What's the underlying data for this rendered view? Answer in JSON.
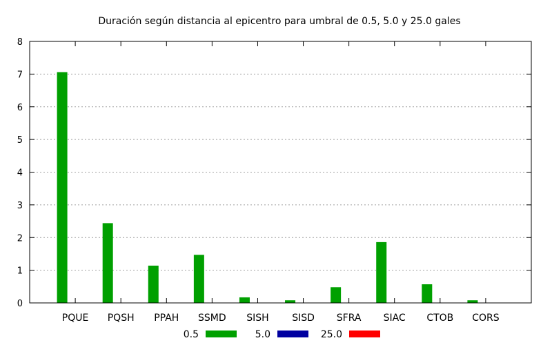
{
  "chart_data": {
    "type": "bar",
    "title": "Duración según distancia al epicentro para umbral de 0.5, 5.0 y 25.0 gales",
    "xlabel": "",
    "ylabel": "",
    "ylim": [
      0,
      8
    ],
    "yticks": [
      0,
      1,
      2,
      3,
      4,
      5,
      6,
      7,
      8
    ],
    "grid": true,
    "legend_position": "bottom",
    "categories": [
      "PQUE",
      "PQSH",
      "PPAH",
      "SSMD",
      "SISH",
      "SISD",
      "SFRA",
      "SIAC",
      "CTOB",
      "CORS"
    ],
    "series": [
      {
        "name": "0.5",
        "color": "#00a000",
        "values": [
          7.06,
          2.44,
          1.14,
          1.47,
          0.17,
          0.08,
          0.48,
          1.86,
          0.57,
          0.08
        ]
      },
      {
        "name": "5.0",
        "color": "#0000a0",
        "values": [
          0,
          0,
          0,
          0,
          0,
          0,
          0,
          0,
          0,
          0
        ]
      },
      {
        "name": "25.0",
        "color": "#ff0000",
        "values": [
          0,
          0,
          0,
          0,
          0,
          0,
          0,
          0,
          0,
          0
        ]
      }
    ]
  }
}
